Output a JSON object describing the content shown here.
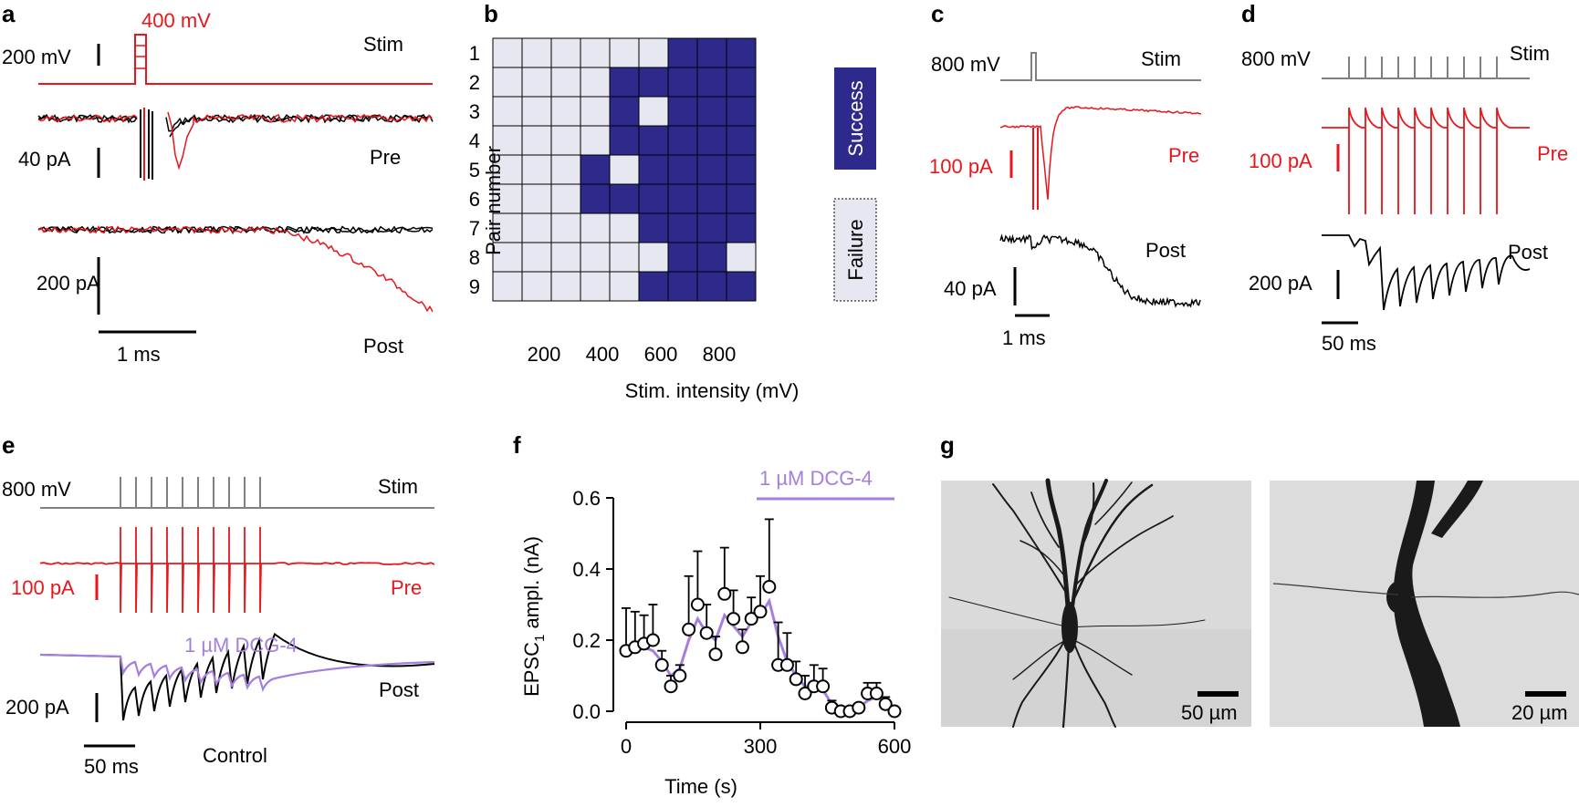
{
  "colors": {
    "red": "#e8151b",
    "black": "#000000",
    "gray": "#808080",
    "navy": "#2e2a8c",
    "pale": "#e6e7f1",
    "purple": "#a47fe0"
  },
  "panel_a": {
    "label": "a",
    "stim_amp_label": "400 mV",
    "stim_scale": "200 mV",
    "stim": "Stim",
    "pre_scale": "40 pA",
    "pre": "Pre",
    "post_scale": "200 pA",
    "post": "Post",
    "time_scale": "1 ms"
  },
  "panel_c": {
    "label": "c",
    "stim_scale": "800 mV",
    "stim": "Stim",
    "pre_scale": "100 pA",
    "pre": "Pre",
    "post_scale": "40 pA",
    "post": "Post",
    "time_scale": "1 ms"
  },
  "panel_d": {
    "label": "d",
    "stim_scale": "800 mV",
    "stim": "Stim",
    "pre_scale": "100 pA",
    "pre": "Pre",
    "post_scale": "200 pA",
    "post": "Post",
    "time_scale": "50 ms"
  },
  "panel_e": {
    "label": "e",
    "stim_scale": "800 mV",
    "stim": "Stim",
    "pre_scale": "100 pA",
    "pre": "Pre",
    "post_scale": "200 pA",
    "post": "Post",
    "drug": "1 µM DCG-4",
    "control": "Control",
    "time_scale": "50 ms"
  },
  "panel_g": {
    "label": "g",
    "scale_left": "50 µm",
    "scale_right": "20 µm"
  },
  "chart_data": [
    {
      "panel": "b",
      "type": "heatmap",
      "xlabel": "Stim. intensity (mV)",
      "ylabel": "Pair number",
      "x_values": [
        100,
        200,
        300,
        400,
        500,
        600,
        700,
        800,
        900
      ],
      "x_tick_labels": [
        "200",
        "400",
        "600",
        "800"
      ],
      "x_tick_values": [
        200,
        400,
        600,
        800
      ],
      "y_labels": [
        "1",
        "2",
        "3",
        "4",
        "5",
        "6",
        "7",
        "8",
        "9"
      ],
      "legend": [
        "Success",
        "Failure"
      ],
      "grid": [
        [
          0,
          0,
          0,
          0,
          0,
          0,
          1,
          1,
          1
        ],
        [
          0,
          0,
          0,
          0,
          1,
          1,
          1,
          1,
          1
        ],
        [
          0,
          0,
          0,
          0,
          1,
          0,
          1,
          1,
          1
        ],
        [
          0,
          0,
          0,
          0,
          1,
          1,
          1,
          1,
          1
        ],
        [
          0,
          0,
          0,
          1,
          0,
          1,
          1,
          1,
          1
        ],
        [
          0,
          0,
          0,
          1,
          1,
          1,
          1,
          1,
          1
        ],
        [
          0,
          0,
          0,
          0,
          0,
          1,
          1,
          1,
          1
        ],
        [
          0,
          0,
          0,
          0,
          0,
          0,
          1,
          1,
          0
        ],
        [
          0,
          0,
          0,
          0,
          0,
          1,
          1,
          1,
          1
        ]
      ]
    },
    {
      "panel": "f",
      "type": "scatter",
      "xlabel": "Time (s)",
      "ylabel": "EPSC",
      "ylabel_sub": "1",
      "ylabel_rest": " ampl. (nA)",
      "xlim": [
        0,
        600
      ],
      "ylim": [
        0,
        0.6
      ],
      "x_ticks": [
        0,
        300,
        600
      ],
      "y_ticks": [
        0.0,
        0.2,
        0.4,
        0.6
      ],
      "y_tick_labels": [
        "0.0",
        "0.2",
        "0.4",
        "0.6"
      ],
      "drug_label": "1 µM DCG-4",
      "drug_range": [
        300,
        600
      ],
      "points": [
        {
          "x": 0,
          "y": 0.17,
          "err": 0.12
        },
        {
          "x": 20,
          "y": 0.18,
          "err": 0.1
        },
        {
          "x": 40,
          "y": 0.19,
          "err": 0.08
        },
        {
          "x": 60,
          "y": 0.2,
          "err": 0.1
        },
        {
          "x": 80,
          "y": 0.13,
          "err": 0.04
        },
        {
          "x": 100,
          "y": 0.07,
          "err": 0.03
        },
        {
          "x": 120,
          "y": 0.1,
          "err": 0.03
        },
        {
          "x": 140,
          "y": 0.23,
          "err": 0.15
        },
        {
          "x": 160,
          "y": 0.3,
          "err": 0.15
        },
        {
          "x": 180,
          "y": 0.22,
          "err": 0.08
        },
        {
          "x": 200,
          "y": 0.16,
          "err": 0.05
        },
        {
          "x": 220,
          "y": 0.33,
          "err": 0.13
        },
        {
          "x": 240,
          "y": 0.26,
          "err": 0.08
        },
        {
          "x": 260,
          "y": 0.18,
          "err": 0.05
        },
        {
          "x": 280,
          "y": 0.26,
          "err": 0.06
        },
        {
          "x": 300,
          "y": 0.28,
          "err": 0.1
        },
        {
          "x": 320,
          "y": 0.35,
          "err": 0.19
        },
        {
          "x": 340,
          "y": 0.13,
          "err": 0.12
        },
        {
          "x": 360,
          "y": 0.13,
          "err": 0.09
        },
        {
          "x": 380,
          "y": 0.09,
          "err": 0.05
        },
        {
          "x": 400,
          "y": 0.05,
          "err": 0.05
        },
        {
          "x": 420,
          "y": 0.07,
          "err": 0.06
        },
        {
          "x": 440,
          "y": 0.07,
          "err": 0.05
        },
        {
          "x": 460,
          "y": 0.01,
          "err": 0.02
        },
        {
          "x": 480,
          "y": 0.0,
          "err": 0.01
        },
        {
          "x": 500,
          "y": 0.0,
          "err": 0.01
        },
        {
          "x": 520,
          "y": 0.01,
          "err": 0.01
        },
        {
          "x": 540,
          "y": 0.05,
          "err": 0.03
        },
        {
          "x": 560,
          "y": 0.05,
          "err": 0.03
        },
        {
          "x": 580,
          "y": 0.02,
          "err": 0.02
        },
        {
          "x": 600,
          "y": 0.0,
          "err": 0.01
        }
      ],
      "smooth": [
        0.17,
        0.18,
        0.18,
        0.17,
        0.14,
        0.1,
        0.12,
        0.2,
        0.26,
        0.22,
        0.2,
        0.27,
        0.24,
        0.21,
        0.25,
        0.27,
        0.31,
        0.21,
        0.14,
        0.1,
        0.07,
        0.07,
        0.06,
        0.02,
        0.01,
        0.01,
        0.01,
        0.03,
        0.04,
        0.03,
        0.01
      ]
    }
  ]
}
